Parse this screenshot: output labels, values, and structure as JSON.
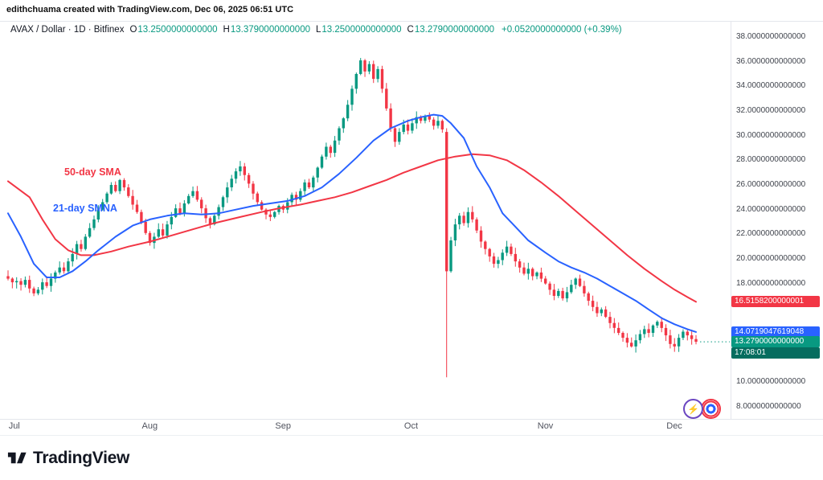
{
  "attribution": "edithchuama created with TradingView.com, Dec 06, 2025 06:51 UTC",
  "header": {
    "title": "AVAX / Dollar · 1D · Bitfinex",
    "symbol": "AVAX / Dollar",
    "interval": "1D",
    "exchange": "Bitfinex",
    "ohlc": [
      {
        "label": "O",
        "value": "13.2500000000000"
      },
      {
        "label": "H",
        "value": "13.3790000000000"
      },
      {
        "label": "L",
        "value": "13.2500000000000"
      },
      {
        "label": "C",
        "value": "13.2790000000000"
      }
    ],
    "change": "+0.0520000000000 (+0.39%)"
  },
  "annotations": {
    "sma50": "50-day SMA",
    "sma21": "21-day SMNA"
  },
  "icons": {
    "lightning": "⚡"
  },
  "footer": {
    "brand": "TradingView"
  },
  "colors": {
    "up": "#089981",
    "down": "#F23645",
    "sma50": "#F23645",
    "sma21": "#2962FF",
    "last_price": "#089981",
    "countdown_bg": "#056d5f"
  },
  "chart_data": {
    "type": "candlestick",
    "x_unit": "day-index (0 = late Jun, ~5.35px/day)",
    "y_axis": {
      "min": 8,
      "max": 38,
      "visible_ticks": [
        {
          "value": 38,
          "label": "38.0000000000000"
        },
        {
          "value": 36,
          "label": "36.0000000000000"
        },
        {
          "value": 34,
          "label": "34.0000000000000"
        },
        {
          "value": 32,
          "label": "32.0000000000000"
        },
        {
          "value": 30,
          "label": "30.0000000000000"
        },
        {
          "value": 28,
          "label": "28.0000000000000"
        },
        {
          "value": 26,
          "label": "26.0000000000000"
        },
        {
          "value": 24,
          "label": "24.0000000000000"
        },
        {
          "value": 22,
          "label": "22.0000000000000"
        },
        {
          "value": 20,
          "label": "20.0000000000000"
        },
        {
          "value": 18,
          "label": "18.0000000000000"
        },
        {
          "value": 10,
          "label": "10.0000000000000"
        },
        {
          "value": 8,
          "label": "8.0000000000000"
        }
      ]
    },
    "x_axis": {
      "months": [
        {
          "label": "Jul",
          "day": 2
        },
        {
          "label": "Aug",
          "day": 33
        },
        {
          "label": "Sep",
          "day": 64
        },
        {
          "label": "Oct",
          "day": 94
        },
        {
          "label": "Nov",
          "day": 125
        },
        {
          "label": "Dec",
          "day": 155
        }
      ]
    },
    "closes": [
      18.4,
      18.1,
      18.2,
      17.9,
      18.3,
      17.6,
      17.2,
      17.5,
      18.1,
      17.8,
      18.4,
      18.9,
      19.3,
      19.0,
      19.8,
      20.4,
      21.2,
      20.8,
      21.8,
      22.5,
      23.2,
      24.0,
      24.6,
      25.3,
      26.0,
      25.5,
      26.4,
      25.8,
      25.1,
      24.4,
      23.8,
      23.0,
      22.1,
      21.3,
      21.8,
      22.4,
      21.9,
      22.8,
      23.4,
      24.1,
      23.7,
      24.5,
      25.1,
      25.5,
      24.8,
      24.1,
      23.3,
      22.8,
      23.5,
      24.2,
      25.0,
      25.8,
      26.5,
      27.1,
      27.5,
      26.8,
      26.1,
      25.3,
      24.6,
      24.0,
      23.6,
      23.4,
      23.8,
      24.3,
      24.0,
      24.6,
      25.2,
      24.8,
      25.5,
      26.2,
      25.8,
      26.6,
      27.4,
      28.3,
      29.1,
      28.6,
      29.6,
      30.6,
      31.4,
      32.5,
      33.8,
      35.0,
      36.1,
      35.2,
      35.8,
      34.6,
      35.4,
      33.8,
      32.2,
      30.6,
      29.5,
      30.3,
      30.9,
      30.4,
      31.0,
      31.5,
      31.2,
      31.6,
      31.3,
      30.8,
      31.2,
      30.5,
      19.0,
      21.5,
      22.8,
      23.5,
      22.9,
      23.8,
      23.2,
      22.3,
      21.4,
      20.8,
      20.2,
      19.6,
      19.9,
      20.5,
      21.0,
      20.4,
      19.8,
      19.3,
      18.8,
      19.2,
      18.6,
      18.9,
      18.4,
      18.0,
      17.5,
      17.0,
      17.4,
      16.8,
      17.3,
      17.9,
      18.4,
      17.8,
      17.2,
      16.6,
      16.1,
      15.6,
      15.9,
      15.3,
      14.8,
      14.4,
      14.0,
      13.6,
      13.2,
      12.9,
      13.4,
      13.9,
      14.3,
      14.0,
      14.6,
      14.9,
      14.4,
      13.8,
      13.1,
      12.9,
      13.6,
      14.1,
      13.8,
      13.5,
      13.28
    ],
    "crash_candle": {
      "index": 102,
      "open": 30.3,
      "high": 30.6,
      "low": 10.4,
      "close": 19.0
    },
    "series": [
      {
        "name": "50-day SMA",
        "color": "#F23645",
        "points": [
          [
            0,
            26.3
          ],
          [
            5,
            25.0
          ],
          [
            8,
            23.2
          ],
          [
            11,
            21.6
          ],
          [
            14,
            20.7
          ],
          [
            17,
            20.3
          ],
          [
            20,
            20.3
          ],
          [
            24,
            20.6
          ],
          [
            28,
            21.0
          ],
          [
            33,
            21.4
          ],
          [
            38,
            21.9
          ],
          [
            43,
            22.4
          ],
          [
            48,
            22.9
          ],
          [
            54,
            23.4
          ],
          [
            59,
            23.8
          ],
          [
            63,
            24.1
          ],
          [
            68,
            24.4
          ],
          [
            72,
            24.7
          ],
          [
            76,
            25.0
          ],
          [
            80,
            25.4
          ],
          [
            84,
            25.9
          ],
          [
            88,
            26.4
          ],
          [
            92,
            27.0
          ],
          [
            96,
            27.5
          ],
          [
            100,
            28.0
          ],
          [
            104,
            28.3
          ],
          [
            108,
            28.5
          ],
          [
            112,
            28.4
          ],
          [
            116,
            28.0
          ],
          [
            120,
            27.2
          ],
          [
            124,
            26.2
          ],
          [
            128,
            25.1
          ],
          [
            132,
            23.9
          ],
          [
            136,
            22.7
          ],
          [
            140,
            21.5
          ],
          [
            144,
            20.3
          ],
          [
            148,
            19.2
          ],
          [
            152,
            18.2
          ],
          [
            155,
            17.5
          ],
          [
            158,
            16.9
          ],
          [
            160,
            16.52
          ]
        ]
      },
      {
        "name": "21-day SMA",
        "color": "#2962FF",
        "points": [
          [
            0,
            23.7
          ],
          [
            3,
            21.8
          ],
          [
            6,
            19.6
          ],
          [
            9,
            18.5
          ],
          [
            12,
            18.5
          ],
          [
            15,
            19.0
          ],
          [
            18,
            19.8
          ],
          [
            21,
            20.7
          ],
          [
            25,
            21.8
          ],
          [
            29,
            22.7
          ],
          [
            33,
            23.2
          ],
          [
            37,
            23.5
          ],
          [
            41,
            23.7
          ],
          [
            45,
            23.6
          ],
          [
            49,
            23.7
          ],
          [
            53,
            24.0
          ],
          [
            57,
            24.3
          ],
          [
            61,
            24.5
          ],
          [
            65,
            24.7
          ],
          [
            69,
            25.1
          ],
          [
            73,
            25.8
          ],
          [
            77,
            26.9
          ],
          [
            81,
            28.2
          ],
          [
            85,
            29.6
          ],
          [
            89,
            30.6
          ],
          [
            93,
            31.2
          ],
          [
            96,
            31.5
          ],
          [
            99,
            31.7
          ],
          [
            101,
            31.6
          ],
          [
            103,
            31.0
          ],
          [
            106,
            29.8
          ],
          [
            109,
            27.5
          ],
          [
            112,
            25.8
          ],
          [
            115,
            23.7
          ],
          [
            118,
            22.6
          ],
          [
            121,
            21.5
          ],
          [
            125,
            20.5
          ],
          [
            128,
            19.8
          ],
          [
            131,
            19.3
          ],
          [
            134,
            18.9
          ],
          [
            137,
            18.4
          ],
          [
            140,
            17.8
          ],
          [
            143,
            17.2
          ],
          [
            146,
            16.6
          ],
          [
            149,
            15.9
          ],
          [
            152,
            15.2
          ],
          [
            155,
            14.7
          ],
          [
            158,
            14.3
          ],
          [
            160,
            14.07
          ]
        ]
      }
    ],
    "sma_badges": [
      {
        "name": "50-day SMA",
        "value": 16.5158200000001,
        "label": "16.5158200000001",
        "color": "#F23645"
      },
      {
        "name": "21-day SMA",
        "value": 14.0719047619048,
        "label": "14.0719047619048",
        "color": "#2962FF"
      }
    ],
    "last_price": {
      "value": 13.279,
      "label": "13.2790000000000",
      "countdown": "17:08:01"
    }
  }
}
